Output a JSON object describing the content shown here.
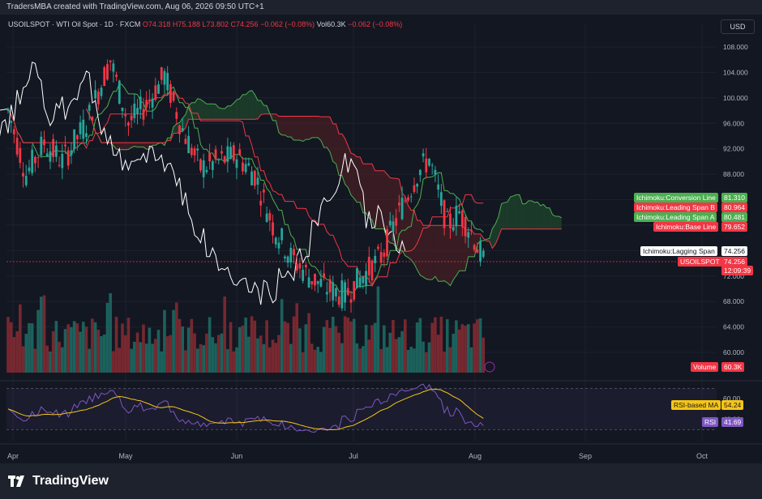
{
  "header": {
    "attribution": "TradersMBA created with TradingView.com, Aug 06, 2026 09:50 UTC+1"
  },
  "legend": {
    "symbol": "USOILSPOT · WTI Oil Spot · 1D · FXCM",
    "open": "O74.318",
    "high": "H75.188",
    "low": "L73.802",
    "close": "C74.256",
    "change": "−0.062 (−0.08%)",
    "volume": "Vol60.3K",
    "vol_change": "−0.062 (−0.08%)"
  },
  "currency_button": "USD",
  "brand": "TradingView",
  "colors": {
    "up": "#26a69a",
    "down": "#f23645",
    "conversion": "#4caf50",
    "base": "#f23645",
    "lagging": "#ffffff",
    "rsi": "#7e57c2",
    "rsi_ma": "#f5c518",
    "cloud_up": "#1f4a2e",
    "cloud_down": "#4a1f24"
  },
  "chart_data": {
    "type": "candlestick",
    "symbol": "USOILSPOT",
    "timeframe": "1D",
    "y_axis_ticks": [
      108,
      104,
      100,
      96,
      92,
      88,
      84,
      80,
      76,
      72,
      68,
      64,
      60
    ],
    "x_axis_labels": [
      "Apr",
      "May",
      "Jun",
      "Jul",
      "Aug",
      "Sep",
      "Oct"
    ],
    "rsi_axis_ticks": [
      60,
      40
    ],
    "ohlc_samples": [
      {
        "date": "Apr",
        "close": 98.0
      },
      {
        "date": "early Apr",
        "close": 90.5
      },
      {
        "date": "mid Apr",
        "close": 93.0
      },
      {
        "date": "May",
        "close": 106.0
      },
      {
        "date": "mid May",
        "close": 95.5
      },
      {
        "date": "late May",
        "close": 103.5
      },
      {
        "date": "Jun",
        "close": 90.0
      },
      {
        "date": "mid Jun",
        "close": 89.0
      },
      {
        "date": "late Jun",
        "close": 76.0
      },
      {
        "date": "early Jul",
        "close": 69.0
      },
      {
        "date": "mid Jul",
        "close": 75.5
      },
      {
        "date": "late Jul",
        "close": 90.5
      },
      {
        "date": "Aug",
        "close": 74.256
      }
    ],
    "indicators": [
      {
        "name": "Ichimoku:Conversion Line",
        "value": "81.310",
        "color": "#4caf50"
      },
      {
        "name": "Ichimoku:Leading Span B",
        "value": "80.964",
        "color": "#f23645"
      },
      {
        "name": "Ichimoku:Leading Span A",
        "value": "80.481",
        "color": "#4caf50"
      },
      {
        "name": "Ichimoku:Base Line",
        "value": "79.652",
        "color": "#f23645"
      },
      {
        "name": "Ichimoku:Lagging Span",
        "value": "74.256",
        "color": "#ffffff"
      }
    ],
    "last_price": {
      "symbol_label": "USOILSPOT",
      "price": "74.256",
      "countdown": "12:09:39"
    },
    "volume": {
      "label": "Volume",
      "value": "60.3K"
    },
    "rsi": {
      "rsi_label": "RSI",
      "rsi_value": "41.69",
      "ma_label": "RSI-based MA",
      "ma_value": "54.24"
    },
    "legend_placement": "top-left"
  }
}
